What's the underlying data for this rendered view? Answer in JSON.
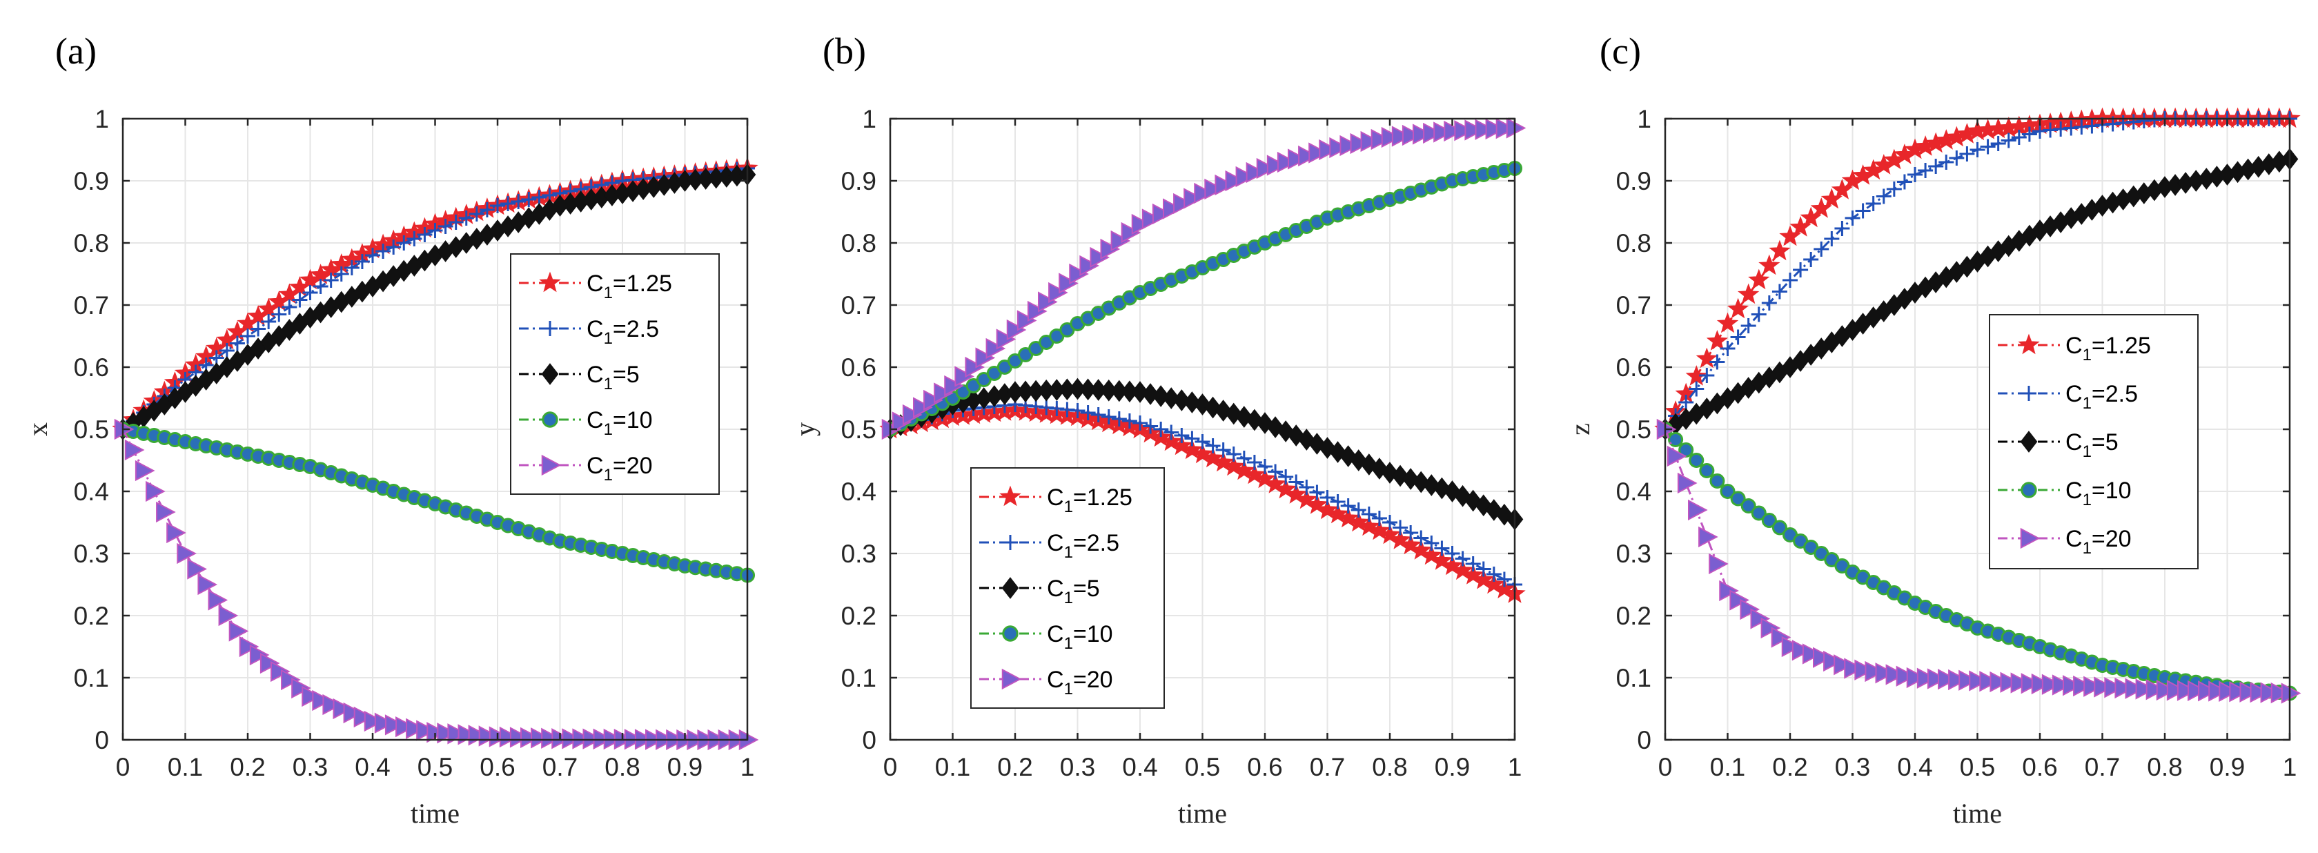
{
  "chart_data": [
    {
      "type": "line",
      "panel_label": "(a)",
      "xlabel": "time",
      "ylabel": "x",
      "xlim": [
        0,
        1
      ],
      "ylim": [
        0,
        1
      ],
      "xticks": [
        "0",
        "0.1",
        "0.2",
        "0.3",
        "0.4",
        "0.5",
        "0.6",
        "0.7",
        "0.8",
        "0.9",
        "1"
      ],
      "yticks": [
        "0",
        "0.1",
        "0.2",
        "0.3",
        "0.4",
        "0.5",
        "0.6",
        "0.7",
        "0.8",
        "0.9",
        "1"
      ],
      "grid": true,
      "legend_position": "center-right",
      "x": [
        0,
        0.1,
        0.2,
        0.3,
        0.4,
        0.5,
        0.6,
        0.7,
        0.8,
        0.9,
        1.0
      ],
      "series": [
        {
          "name": "C1=1.25",
          "label_main": "C",
          "label_sub": "1",
          "label_rest": "=1.25",
          "values": [
            0.5,
            0.59,
            0.67,
            0.74,
            0.79,
            0.83,
            0.86,
            0.88,
            0.9,
            0.91,
            0.92
          ]
        },
        {
          "name": "C1=2.5",
          "label_main": "C",
          "label_sub": "1",
          "label_rest": "=2.5",
          "values": [
            0.5,
            0.58,
            0.65,
            0.72,
            0.78,
            0.82,
            0.86,
            0.88,
            0.9,
            0.91,
            0.92
          ]
        },
        {
          "name": "C1=5",
          "label_main": "C",
          "label_sub": "1",
          "label_rest": "=5",
          "values": [
            0.5,
            0.56,
            0.62,
            0.68,
            0.73,
            0.78,
            0.82,
            0.86,
            0.88,
            0.9,
            0.91
          ]
        },
        {
          "name": "C1=10",
          "label_main": "C",
          "label_sub": "1",
          "label_rest": "=10",
          "values": [
            0.5,
            0.48,
            0.46,
            0.44,
            0.41,
            0.38,
            0.35,
            0.32,
            0.3,
            0.28,
            0.265
          ]
        },
        {
          "name": "C1=20",
          "label_main": "C",
          "label_sub": "1",
          "label_rest": "=20",
          "values": [
            0.5,
            0.3,
            0.15,
            0.07,
            0.03,
            0.012,
            0.005,
            0.002,
            0.001,
            0.0,
            0.0
          ]
        }
      ]
    },
    {
      "type": "line",
      "panel_label": "(b)",
      "xlabel": "time",
      "ylabel": "y",
      "xlim": [
        0,
        1
      ],
      "ylim": [
        0,
        1
      ],
      "xticks": [
        "0",
        "0.1",
        "0.2",
        "0.3",
        "0.4",
        "0.5",
        "0.6",
        "0.7",
        "0.8",
        "0.9",
        "1"
      ],
      "yticks": [
        "0",
        "0.1",
        "0.2",
        "0.3",
        "0.4",
        "0.5",
        "0.6",
        "0.7",
        "0.8",
        "0.9",
        "1"
      ],
      "grid": true,
      "legend_position": "lower-left",
      "x": [
        0,
        0.1,
        0.2,
        0.3,
        0.4,
        0.5,
        0.6,
        0.7,
        0.8,
        0.9,
        1.0
      ],
      "series": [
        {
          "name": "C1=1.25",
          "label_main": "C",
          "label_sub": "1",
          "label_rest": "=1.25",
          "values": [
            0.5,
            0.52,
            0.53,
            0.52,
            0.5,
            0.46,
            0.42,
            0.37,
            0.33,
            0.28,
            0.235
          ]
        },
        {
          "name": "C1=2.5",
          "label_main": "C",
          "label_sub": "1",
          "label_rest": "=2.5",
          "values": [
            0.5,
            0.53,
            0.54,
            0.53,
            0.51,
            0.48,
            0.44,
            0.39,
            0.35,
            0.3,
            0.25
          ]
        },
        {
          "name": "C1=5",
          "label_main": "C",
          "label_sub": "1",
          "label_rest": "=5",
          "values": [
            0.5,
            0.54,
            0.56,
            0.565,
            0.56,
            0.54,
            0.51,
            0.47,
            0.43,
            0.4,
            0.355
          ]
        },
        {
          "name": "C1=10",
          "label_main": "C",
          "label_sub": "1",
          "label_rest": "=10",
          "values": [
            0.5,
            0.55,
            0.61,
            0.67,
            0.72,
            0.76,
            0.8,
            0.84,
            0.87,
            0.9,
            0.92
          ]
        },
        {
          "name": "C1=20",
          "label_main": "C",
          "label_sub": "1",
          "label_rest": "=20",
          "values": [
            0.5,
            0.57,
            0.66,
            0.75,
            0.83,
            0.88,
            0.92,
            0.95,
            0.97,
            0.98,
            0.985
          ]
        }
      ]
    },
    {
      "type": "line",
      "panel_label": "(c)",
      "xlabel": "time",
      "ylabel": "z",
      "xlim": [
        0,
        1
      ],
      "ylim": [
        0,
        1
      ],
      "xticks": [
        "0",
        "0.1",
        "0.2",
        "0.3",
        "0.4",
        "0.5",
        "0.6",
        "0.7",
        "0.8",
        "0.9",
        "1"
      ],
      "yticks": [
        "0",
        "0.1",
        "0.2",
        "0.3",
        "0.4",
        "0.5",
        "0.6",
        "0.7",
        "0.8",
        "0.9",
        "1"
      ],
      "grid": true,
      "legend_position": "center-right",
      "x": [
        0,
        0.1,
        0.2,
        0.3,
        0.4,
        0.5,
        0.6,
        0.7,
        0.8,
        0.9,
        1.0
      ],
      "series": [
        {
          "name": "C1=1.25",
          "label_main": "C",
          "label_sub": "1",
          "label_rest": "=1.25",
          "values": [
            0.5,
            0.67,
            0.81,
            0.9,
            0.95,
            0.98,
            0.99,
            1.0,
            1.0,
            1.0,
            1.0
          ]
        },
        {
          "name": "C1=2.5",
          "label_main": "C",
          "label_sub": "1",
          "label_rest": "=2.5",
          "values": [
            0.5,
            0.63,
            0.74,
            0.84,
            0.91,
            0.95,
            0.98,
            0.99,
            1.0,
            1.0,
            1.0
          ]
        },
        {
          "name": "C1=5",
          "label_main": "C",
          "label_sub": "1",
          "label_rest": "=5",
          "values": [
            0.5,
            0.55,
            0.6,
            0.66,
            0.72,
            0.77,
            0.82,
            0.86,
            0.89,
            0.91,
            0.935
          ]
        },
        {
          "name": "C1=10",
          "label_main": "C",
          "label_sub": "1",
          "label_rest": "=10",
          "values": [
            0.5,
            0.4,
            0.33,
            0.27,
            0.22,
            0.18,
            0.15,
            0.12,
            0.1,
            0.085,
            0.075
          ]
        },
        {
          "name": "C1=20",
          "label_main": "C",
          "label_sub": "1",
          "label_rest": "=20",
          "values": [
            0.5,
            0.24,
            0.15,
            0.115,
            0.1,
            0.095,
            0.09,
            0.085,
            0.08,
            0.078,
            0.075
          ]
        }
      ]
    }
  ],
  "series_styles": [
    {
      "color": "#e8262a",
      "marker": "star"
    },
    {
      "color": "#2050b8",
      "marker": "plus"
    },
    {
      "color": "#000000",
      "marker": "diamond"
    },
    {
      "color": "#3aa935",
      "marker": "circle",
      "fill": "#2a6fb8"
    },
    {
      "color": "#c055c0",
      "marker": "triangle-right",
      "fill": "#7b5ed0"
    }
  ]
}
